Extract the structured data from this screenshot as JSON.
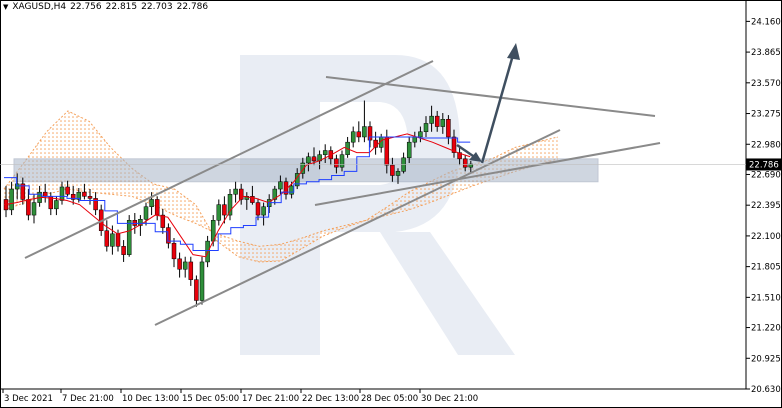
{
  "header": {
    "symbol": "XAGUSD,H4",
    "open": "22.756",
    "high": "22.815",
    "low": "22.703",
    "close": "22.786",
    "menu_icon": "triangle-down-icon"
  },
  "colors": {
    "candle": "#e8000b",
    "kijun": "#1f3fff",
    "tenkan": "#e8000b",
    "cloud_dots": "#f4a05a",
    "cloud_band": "#f3c9b4",
    "lines": "#8a8a8a",
    "arrow": "#3f4f60",
    "price_label_bg": "#000000",
    "watermark": "#e9edf4"
  },
  "chart_data": {
    "type": "candlestick",
    "symbol": "XAGUSD",
    "timeframe": "H4",
    "current_price": "22.786",
    "ylim": [
      20.63,
      24.25
    ],
    "y_ticks": [
      "24.160",
      "23.865",
      "23.570",
      "23.275",
      "22.980",
      "22.690",
      "22.395",
      "22.100",
      "21.805",
      "21.510",
      "21.220",
      "20.925",
      "20.630"
    ],
    "x_ticks": [
      "3 Dec 2021",
      "7 Dec 21:00",
      "10 Dec 13:00",
      "15 Dec 05:00",
      "17 Dec 21:00",
      "22 Dec 13:00",
      "28 Dec 05:00",
      "30 Dec 21:00"
    ],
    "candles": [
      [
        22.45,
        22.58,
        22.28,
        22.35
      ],
      [
        22.35,
        22.62,
        22.3,
        22.55
      ],
      [
        22.55,
        22.7,
        22.45,
        22.6
      ],
      [
        22.6,
        22.66,
        22.4,
        22.45
      ],
      [
        22.45,
        22.55,
        22.25,
        22.3
      ],
      [
        22.3,
        22.5,
        22.22,
        22.42
      ],
      [
        22.42,
        22.58,
        22.38,
        22.52
      ],
      [
        22.52,
        22.6,
        22.42,
        22.48
      ],
      [
        22.48,
        22.52,
        22.3,
        22.36
      ],
      [
        22.36,
        22.48,
        22.3,
        22.44
      ],
      [
        22.44,
        22.62,
        22.4,
        22.57
      ],
      [
        22.57,
        22.63,
        22.48,
        22.5
      ],
      [
        22.5,
        22.58,
        22.4,
        22.45
      ],
      [
        22.45,
        22.56,
        22.42,
        22.52
      ],
      [
        22.52,
        22.6,
        22.45,
        22.48
      ],
      [
        22.48,
        22.55,
        22.4,
        22.46
      ],
      [
        22.46,
        22.52,
        22.3,
        22.35
      ],
      [
        22.35,
        22.4,
        22.1,
        22.15
      ],
      [
        22.15,
        22.25,
        21.95,
        22.0
      ],
      [
        22.0,
        22.2,
        21.92,
        22.12
      ],
      [
        22.12,
        22.16,
        21.95,
        22.0
      ],
      [
        22.0,
        22.06,
        21.85,
        21.92
      ],
      [
        21.92,
        22.3,
        21.9,
        22.25
      ],
      [
        22.25,
        22.32,
        22.12,
        22.2
      ],
      [
        22.2,
        22.3,
        22.1,
        22.26
      ],
      [
        22.26,
        22.42,
        22.2,
        22.38
      ],
      [
        22.38,
        22.52,
        22.3,
        22.45
      ],
      [
        22.45,
        22.48,
        22.25,
        22.3
      ],
      [
        22.3,
        22.36,
        22.12,
        22.18
      ],
      [
        22.18,
        22.22,
        21.98,
        22.03
      ],
      [
        22.03,
        22.08,
        21.8,
        21.88
      ],
      [
        21.88,
        21.94,
        21.7,
        21.78
      ],
      [
        21.78,
        21.9,
        21.7,
        21.85
      ],
      [
        21.85,
        21.9,
        21.62,
        21.68
      ],
      [
        21.68,
        21.72,
        21.42,
        21.48
      ],
      [
        21.48,
        21.9,
        21.44,
        21.85
      ],
      [
        21.85,
        22.1,
        21.8,
        22.05
      ],
      [
        22.05,
        22.3,
        22.0,
        22.25
      ],
      [
        22.25,
        22.45,
        22.2,
        22.4
      ],
      [
        22.4,
        22.48,
        22.22,
        22.3
      ],
      [
        22.3,
        22.55,
        22.25,
        22.5
      ],
      [
        22.5,
        22.62,
        22.42,
        22.55
      ],
      [
        22.55,
        22.6,
        22.4,
        22.45
      ],
      [
        22.45,
        22.52,
        22.35,
        22.48
      ],
      [
        22.48,
        22.58,
        22.4,
        22.42
      ],
      [
        22.42,
        22.46,
        22.25,
        22.3
      ],
      [
        22.3,
        22.42,
        22.2,
        22.38
      ],
      [
        22.38,
        22.5,
        22.32,
        22.45
      ],
      [
        22.45,
        22.58,
        22.4,
        22.55
      ],
      [
        22.55,
        22.68,
        22.5,
        22.62
      ],
      [
        22.62,
        22.66,
        22.45,
        22.5
      ],
      [
        22.5,
        22.62,
        22.46,
        22.58
      ],
      [
        22.58,
        22.75,
        22.55,
        22.7
      ],
      [
        22.7,
        22.85,
        22.65,
        22.8
      ],
      [
        22.8,
        22.9,
        22.72,
        22.86
      ],
      [
        22.86,
        22.95,
        22.78,
        22.82
      ],
      [
        22.82,
        22.92,
        22.74,
        22.88
      ],
      [
        22.88,
        22.98,
        22.8,
        22.92
      ],
      [
        22.92,
        22.96,
        22.78,
        22.84
      ],
      [
        22.84,
        22.88,
        22.7,
        22.76
      ],
      [
        22.76,
        22.92,
        22.72,
        22.88
      ],
      [
        22.88,
        23.05,
        22.85,
        23.0
      ],
      [
        23.0,
        23.15,
        22.95,
        23.1
      ],
      [
        23.1,
        23.2,
        23.0,
        23.05
      ],
      [
        23.05,
        23.4,
        23.0,
        23.15
      ],
      [
        23.15,
        23.2,
        22.95,
        23.02
      ],
      [
        23.02,
        23.1,
        22.88,
        22.95
      ],
      [
        22.95,
        23.08,
        22.9,
        23.05
      ],
      [
        23.05,
        23.12,
        22.7,
        22.78
      ],
      [
        22.78,
        22.85,
        22.62,
        22.68
      ],
      [
        22.68,
        22.75,
        22.6,
        22.72
      ],
      [
        22.72,
        22.9,
        22.7,
        22.85
      ],
      [
        22.85,
        23.05,
        22.8,
        23.0
      ],
      [
        23.0,
        23.1,
        22.95,
        23.05
      ],
      [
        23.05,
        23.15,
        23.0,
        23.1
      ],
      [
        23.1,
        23.25,
        23.05,
        23.18
      ],
      [
        23.18,
        23.35,
        23.1,
        23.25
      ],
      [
        23.25,
        23.3,
        23.1,
        23.15
      ],
      [
        23.15,
        23.28,
        23.08,
        23.22
      ],
      [
        23.22,
        23.26,
        22.98,
        23.05
      ],
      [
        23.05,
        23.12,
        22.85,
        22.9
      ],
      [
        22.9,
        22.95,
        22.78,
        22.84
      ],
      [
        22.84,
        22.88,
        22.72,
        22.76
      ],
      [
        22.76,
        22.82,
        22.7,
        22.79
      ]
    ],
    "tenkan": [
      22.4,
      22.42,
      22.45,
      22.47,
      22.46,
      22.44,
      22.4,
      22.3,
      22.2,
      22.12,
      22.15,
      22.22,
      22.3,
      22.28,
      22.1,
      21.92,
      21.9,
      22.15,
      22.35,
      22.48,
      22.46,
      22.42,
      22.5,
      22.62,
      22.78,
      22.82,
      22.88,
      22.95,
      22.9,
      22.9,
      23.02,
      23.05,
      23.08,
      23.04,
      23.0,
      22.95,
      22.9,
      22.86
    ],
    "kijun": [
      22.66,
      22.58,
      22.5,
      22.48,
      22.48,
      22.46,
      22.44,
      22.44,
      22.34,
      22.22,
      22.22,
      22.22,
      22.14,
      22.05,
      22.02,
      21.96,
      21.96,
      22.12,
      22.18,
      22.2,
      22.28,
      22.42,
      22.52,
      22.6,
      22.62,
      22.64,
      22.68,
      22.72,
      22.86,
      23.05,
      23.05,
      23.05,
      23.05,
      23.04,
      23.04,
      23.04,
      23.0,
      23.0
    ],
    "span_a": [
      22.55,
      22.82,
      23.1,
      23.3,
      23.2,
      22.95,
      22.75,
      22.6,
      22.55,
      22.4,
      22.05,
      21.9,
      21.85,
      21.86,
      21.98,
      22.1,
      22.18,
      22.25,
      22.38,
      22.52,
      22.62,
      22.72,
      22.78,
      22.85,
      22.95,
      23.0,
      23.05
    ],
    "span_b": [
      22.35,
      22.42,
      22.5,
      22.55,
      22.52,
      22.5,
      22.48,
      22.4,
      22.3,
      22.22,
      22.12,
      22.05,
      22.0,
      22.02,
      22.08,
      22.15,
      22.2,
      22.25,
      22.3,
      22.35,
      22.42,
      22.5,
      22.58,
      22.65,
      22.72,
      22.78,
      22.84
    ],
    "annotations": {
      "support_zone": [
        22.62,
        22.84
      ],
      "forecast_target": 23.98
    }
  }
}
